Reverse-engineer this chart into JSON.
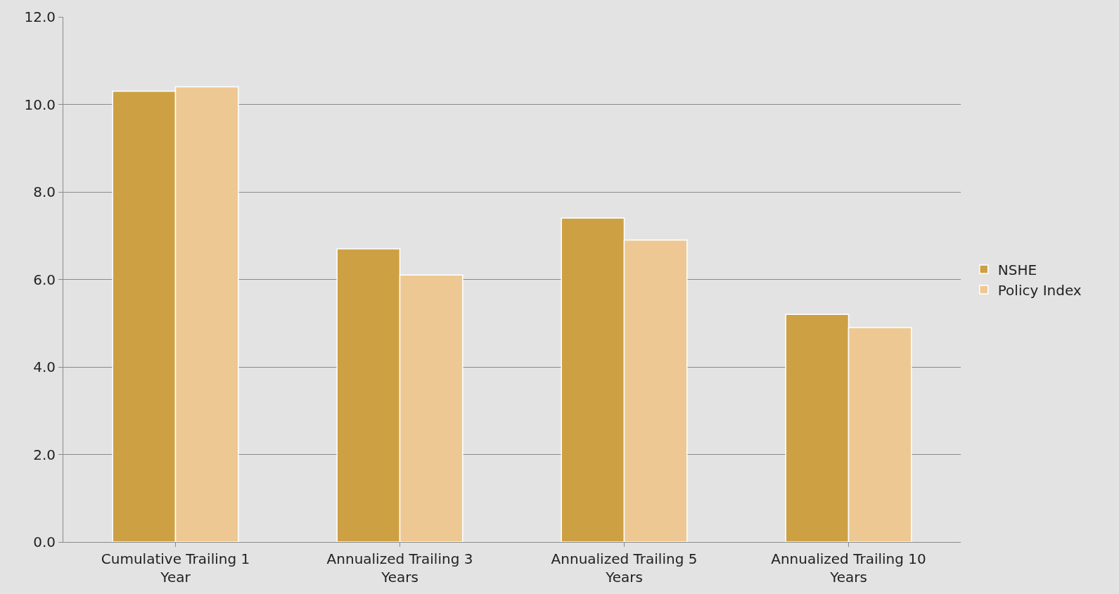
{
  "chart_data": {
    "type": "bar",
    "categories": [
      "Cumulative Trailing 1 Year",
      "Annualized Trailing 3 Years",
      "Annualized Trailing 5 Years",
      "Annualized Trailing 10 Years"
    ],
    "series": [
      {
        "name": "NSHE",
        "color": "#cda143",
        "values": [
          10.3,
          6.7,
          7.4,
          5.2
        ]
      },
      {
        "name": "Policy Index",
        "color": "#eec892",
        "values": [
          10.4,
          6.1,
          6.9,
          4.9
        ]
      }
    ],
    "ylim": [
      0,
      12
    ],
    "yticks": [
      {
        "value": 0,
        "label": "0.0"
      },
      {
        "value": 2,
        "label": "2.0"
      },
      {
        "value": 4,
        "label": "4.0"
      },
      {
        "value": 6,
        "label": "6.0"
      },
      {
        "value": 8,
        "label": "8.0"
      },
      {
        "value": 10,
        "label": "10.0"
      },
      {
        "value": 12,
        "label": "12.0"
      }
    ],
    "grid": "y",
    "legend": "right"
  }
}
